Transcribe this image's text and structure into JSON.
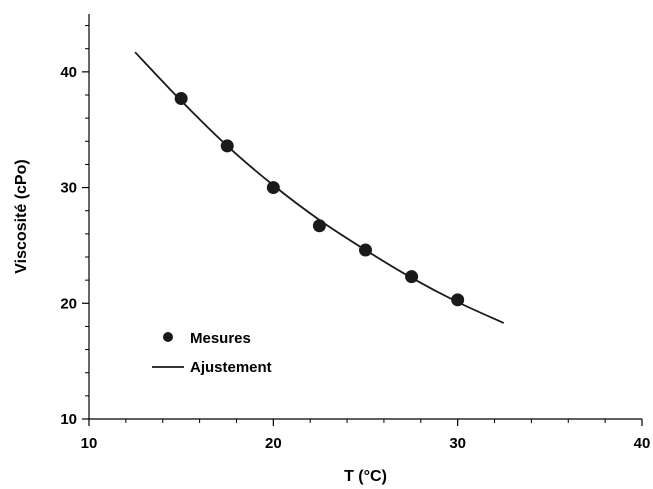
{
  "chart_data": {
    "type": "scatter",
    "title": "",
    "xlabel": "T (°C)",
    "ylabel": "Viscosité (cPo)",
    "xlim": [
      10,
      40
    ],
    "ylim": [
      10,
      45
    ],
    "x_ticks": [
      10,
      20,
      30,
      40
    ],
    "y_ticks": [
      10,
      20,
      30,
      40
    ],
    "grid": false,
    "legend_position": "bottom-left",
    "series": [
      {
        "name": "Mesures",
        "kind": "markers",
        "color": "#1a1a1a",
        "x": [
          15,
          17.5,
          20,
          22.5,
          25,
          27.5,
          30
        ],
        "y": [
          37.7,
          33.6,
          30.0,
          26.7,
          24.6,
          22.3,
          20.3
        ]
      },
      {
        "name": "Ajustement",
        "kind": "line",
        "color": "#1a1a1a",
        "x": [
          12.5,
          15,
          17.5,
          20,
          22.5,
          25,
          27.5,
          30,
          32.5
        ],
        "y": [
          41.7,
          37.5,
          33.6,
          30.2,
          27.2,
          24.6,
          22.2,
          20.1,
          18.3
        ]
      }
    ]
  }
}
